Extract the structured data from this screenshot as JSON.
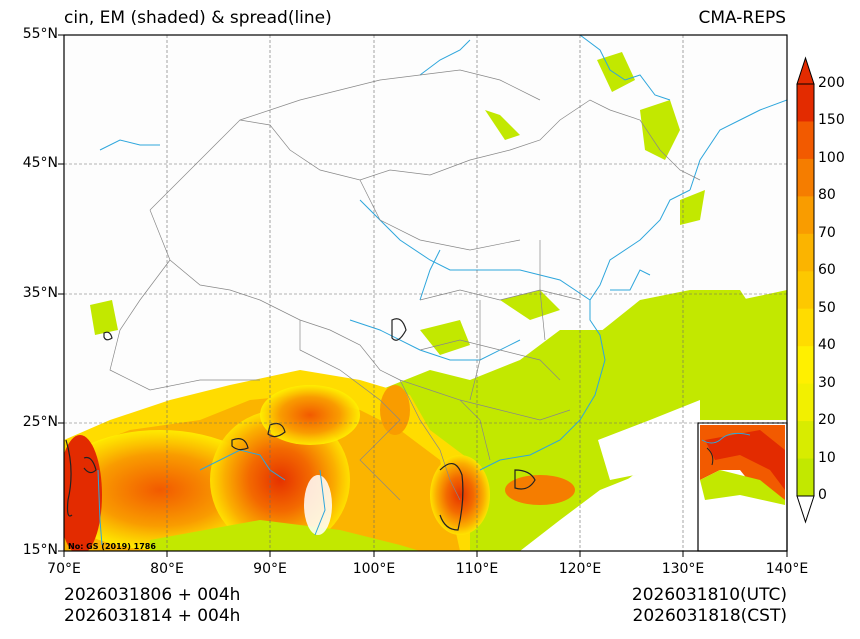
{
  "title_left": "cin, EM (shaded) & spread(line)",
  "title_right": "CMA-REPS",
  "lat_labels": [
    "55°N",
    "45°N",
    "35°N",
    "25°N",
    "15°N"
  ],
  "lon_labels": [
    "70°E",
    "80°E",
    "90°E",
    "100°E",
    "110°E",
    "120°E",
    "130°E",
    "140°E"
  ],
  "init_times": [
    "2026031806  +  004h",
    "2026031814  +  004h"
  ],
  "valid_times": [
    "2026031810(UTC)",
    "2026031818(CST)"
  ],
  "map_note": "No: GS (2019) 1786",
  "colorbar": {
    "levels": [
      "200",
      "150",
      "100",
      "80",
      "70",
      "60",
      "50",
      "40",
      "30",
      "20",
      "10",
      "0"
    ],
    "colors": [
      "#e32b00",
      "#f25a00",
      "#f57d00",
      "#f99c00",
      "#fbb400",
      "#fdc800",
      "#ffdc00",
      "#fff000",
      "#f2f000",
      "#d8ec00",
      "#c2e800"
    ]
  },
  "colors": {
    "coast": "#2ea6dc",
    "border": "#888888",
    "grid": "#6a6a6a",
    "spread": "#222222"
  }
}
